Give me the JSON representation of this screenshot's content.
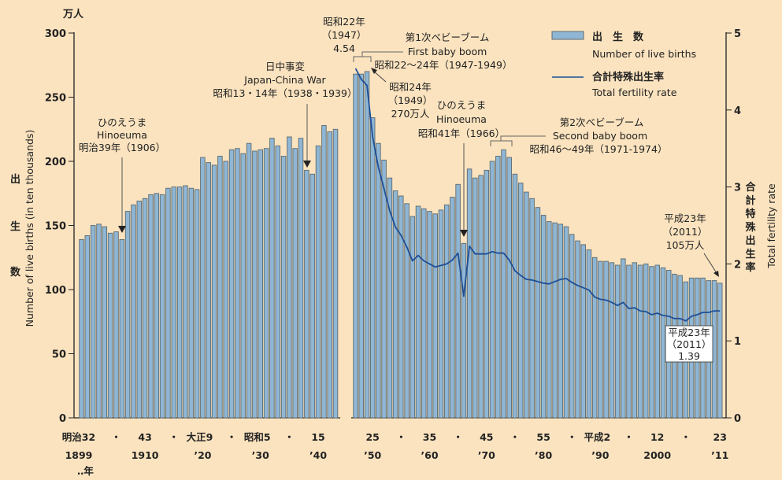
{
  "chart_data": {
    "type": "bar+line",
    "unit_label": "万人",
    "y_left": {
      "label_ja": [
        "出",
        "生",
        "数"
      ],
      "label_en": "Number of live births  (in ten thousands)",
      "ylim": [
        0,
        300
      ],
      "ticks": [
        0,
        50,
        100,
        150,
        200,
        250,
        300
      ]
    },
    "y_right": {
      "label_ja": [
        "合",
        "計",
        "特",
        "殊",
        "出",
        "生",
        "率"
      ],
      "label_en": "Total fertility rate",
      "ylim": [
        0,
        5
      ],
      "ticks": [
        0,
        1,
        2,
        3,
        4,
        5
      ]
    },
    "x_tick_labels": [
      {
        "year": 1899,
        "top": "明治32",
        "bottom": "1899"
      },
      {
        "year": 1905,
        "top": "・",
        "bottom": ""
      },
      {
        "year": 1910,
        "top": "43",
        "bottom": "1910"
      },
      {
        "year": 1915,
        "top": "・",
        "bottom": ""
      },
      {
        "year": 1920,
        "top": "大正9",
        "bottom": "’20"
      },
      {
        "year": 1925,
        "top": "・",
        "bottom": ""
      },
      {
        "year": 1930,
        "top": "昭和5",
        "bottom": "’30"
      },
      {
        "year": 1935,
        "top": "・",
        "bottom": ""
      },
      {
        "year": 1940,
        "top": "15",
        "bottom": "’40"
      },
      {
        "year": 1950,
        "top": "25",
        "bottom": "’50"
      },
      {
        "year": 1955,
        "top": "・",
        "bottom": ""
      },
      {
        "year": 1960,
        "top": "35",
        "bottom": "’60"
      },
      {
        "year": 1965,
        "top": "・",
        "bottom": ""
      },
      {
        "year": 1970,
        "top": "45",
        "bottom": "’70"
      },
      {
        "year": 1975,
        "top": "・",
        "bottom": ""
      },
      {
        "year": 1980,
        "top": "55",
        "bottom": "’80"
      },
      {
        "year": 1985,
        "top": "・",
        "bottom": ""
      },
      {
        "year": 1990,
        "top": "平成2",
        "bottom": "’90"
      },
      {
        "year": 1995,
        "top": "・",
        "bottom": ""
      },
      {
        "year": 2000,
        "top": "12",
        "bottom": "2000"
      },
      {
        "year": 2005,
        "top": "・",
        "bottom": ""
      },
      {
        "year": 2011,
        "top": "23",
        "bottom": "’11"
      }
    ],
    "x_unit_note": "‥年",
    "legend": {
      "position": "top-right",
      "bar_ja": "出　生　数",
      "bar_en": "Number of live births",
      "line_ja": "合計特殊出生率",
      "line_en": "Total fertility rate"
    },
    "births": {
      "name": "Number of live births",
      "x": [
        1899,
        1900,
        1901,
        1902,
        1903,
        1904,
        1905,
        1906,
        1907,
        1908,
        1909,
        1910,
        1911,
        1912,
        1913,
        1914,
        1915,
        1916,
        1917,
        1918,
        1919,
        1920,
        1921,
        1922,
        1923,
        1924,
        1925,
        1926,
        1927,
        1928,
        1929,
        1930,
        1931,
        1932,
        1933,
        1934,
        1935,
        1936,
        1937,
        1938,
        1939,
        1940,
        1941,
        1942,
        1943,
        1947,
        1948,
        1949,
        1950,
        1951,
        1952,
        1953,
        1954,
        1955,
        1956,
        1957,
        1958,
        1959,
        1960,
        1961,
        1962,
        1963,
        1964,
        1965,
        1966,
        1967,
        1968,
        1969,
        1970,
        1971,
        1972,
        1973,
        1974,
        1975,
        1976,
        1977,
        1978,
        1979,
        1980,
        1981,
        1982,
        1983,
        1984,
        1985,
        1986,
        1987,
        1988,
        1989,
        1990,
        1991,
        1992,
        1993,
        1994,
        1995,
        1996,
        1997,
        1998,
        1999,
        2000,
        2001,
        2002,
        2003,
        2004,
        2005,
        2006,
        2007,
        2008,
        2009,
        2010,
        2011
      ],
      "values": [
        139,
        142,
        150,
        151,
        149,
        144,
        145,
        139,
        161,
        166,
        169,
        171,
        174,
        175,
        174,
        179,
        180,
        180,
        181,
        179,
        178,
        203,
        199,
        197,
        204,
        200,
        209,
        210,
        206,
        214,
        208,
        209,
        210,
        218,
        212,
        204,
        219,
        210,
        218,
        193,
        190,
        212,
        228,
        223,
        225,
        268,
        268,
        270,
        234,
        214,
        201,
        187,
        177,
        173,
        167,
        157,
        165,
        163,
        161,
        159,
        162,
        166,
        172,
        182,
        136,
        194,
        187,
        189,
        193,
        200,
        204,
        209,
        203,
        190,
        183,
        176,
        171,
        164,
        158,
        153,
        152,
        151,
        149,
        143,
        138,
        135,
        131,
        125,
        122,
        122,
        121,
        119,
        124,
        119,
        121,
        119,
        120,
        118,
        119,
        117,
        115,
        112,
        111,
        106,
        109,
        109,
        109,
        107,
        107,
        105
      ]
    },
    "tfr": {
      "name": "Total fertility rate",
      "x": [
        1947,
        1948,
        1949,
        1950,
        1951,
        1952,
        1953,
        1954,
        1955,
        1956,
        1957,
        1958,
        1959,
        1960,
        1961,
        1962,
        1963,
        1964,
        1965,
        1966,
        1967,
        1968,
        1969,
        1970,
        1971,
        1972,
        1973,
        1974,
        1975,
        1976,
        1977,
        1978,
        1979,
        1980,
        1981,
        1982,
        1983,
        1984,
        1985,
        1986,
        1987,
        1988,
        1989,
        1990,
        1991,
        1992,
        1993,
        1994,
        1995,
        1996,
        1997,
        1998,
        1999,
        2000,
        2001,
        2002,
        2003,
        2004,
        2005,
        2006,
        2007,
        2008,
        2009,
        2010,
        2011
      ],
      "values": [
        4.54,
        4.4,
        4.32,
        3.65,
        3.26,
        2.98,
        2.69,
        2.48,
        2.37,
        2.22,
        2.04,
        2.11,
        2.04,
        2.0,
        1.96,
        1.98,
        2.0,
        2.05,
        2.14,
        1.58,
        2.23,
        2.13,
        2.13,
        2.13,
        2.16,
        2.14,
        2.14,
        2.05,
        1.91,
        1.85,
        1.8,
        1.79,
        1.77,
        1.75,
        1.74,
        1.77,
        1.8,
        1.81,
        1.76,
        1.72,
        1.69,
        1.66,
        1.57,
        1.54,
        1.53,
        1.5,
        1.46,
        1.5,
        1.42,
        1.43,
        1.39,
        1.38,
        1.34,
        1.36,
        1.33,
        1.32,
        1.29,
        1.29,
        1.26,
        1.32,
        1.34,
        1.37,
        1.37,
        1.39,
        1.39
      ]
    },
    "annotations": {
      "hinoeuma_1906": {
        "lines": [
          "ひのえうま",
          "Hinoeuma",
          "明治39年（1906）"
        ]
      },
      "japan_china_war": {
        "lines": [
          "日中事変",
          "Japan-China War",
          "昭和13・14年（1938・1939）"
        ]
      },
      "peak_tfr_1947": {
        "lines": [
          "昭和22年",
          "（1947）",
          "4.54"
        ]
      },
      "first_baby_boom": {
        "lines": [
          "第1次ベビーブーム",
          "First baby boom",
          "昭和22～24年（1947-1949）"
        ]
      },
      "peak_births_1949": {
        "lines": [
          "昭和24年",
          "（1949）",
          "270万人"
        ]
      },
      "hinoeuma_1966": {
        "lines": [
          "ひのえうま",
          "Hinoeuma",
          "昭和41年（1966）"
        ]
      },
      "second_baby_boom": {
        "lines": [
          "第2次ベビーブーム",
          "Second baby boom",
          "昭和46～49年（1971-1974）"
        ]
      },
      "births_2011": {
        "lines": [
          "平成23年",
          "（2011）",
          "105万人"
        ]
      },
      "tfr_2011": {
        "lines": [
          "平成23年",
          "（2011）",
          "1.39"
        ]
      }
    },
    "colors": {
      "bar_fill": "#8fb6d4",
      "bar_stroke": "#5d6b70",
      "line": "#1f4f96",
      "background": "#fbe3bf"
    }
  }
}
